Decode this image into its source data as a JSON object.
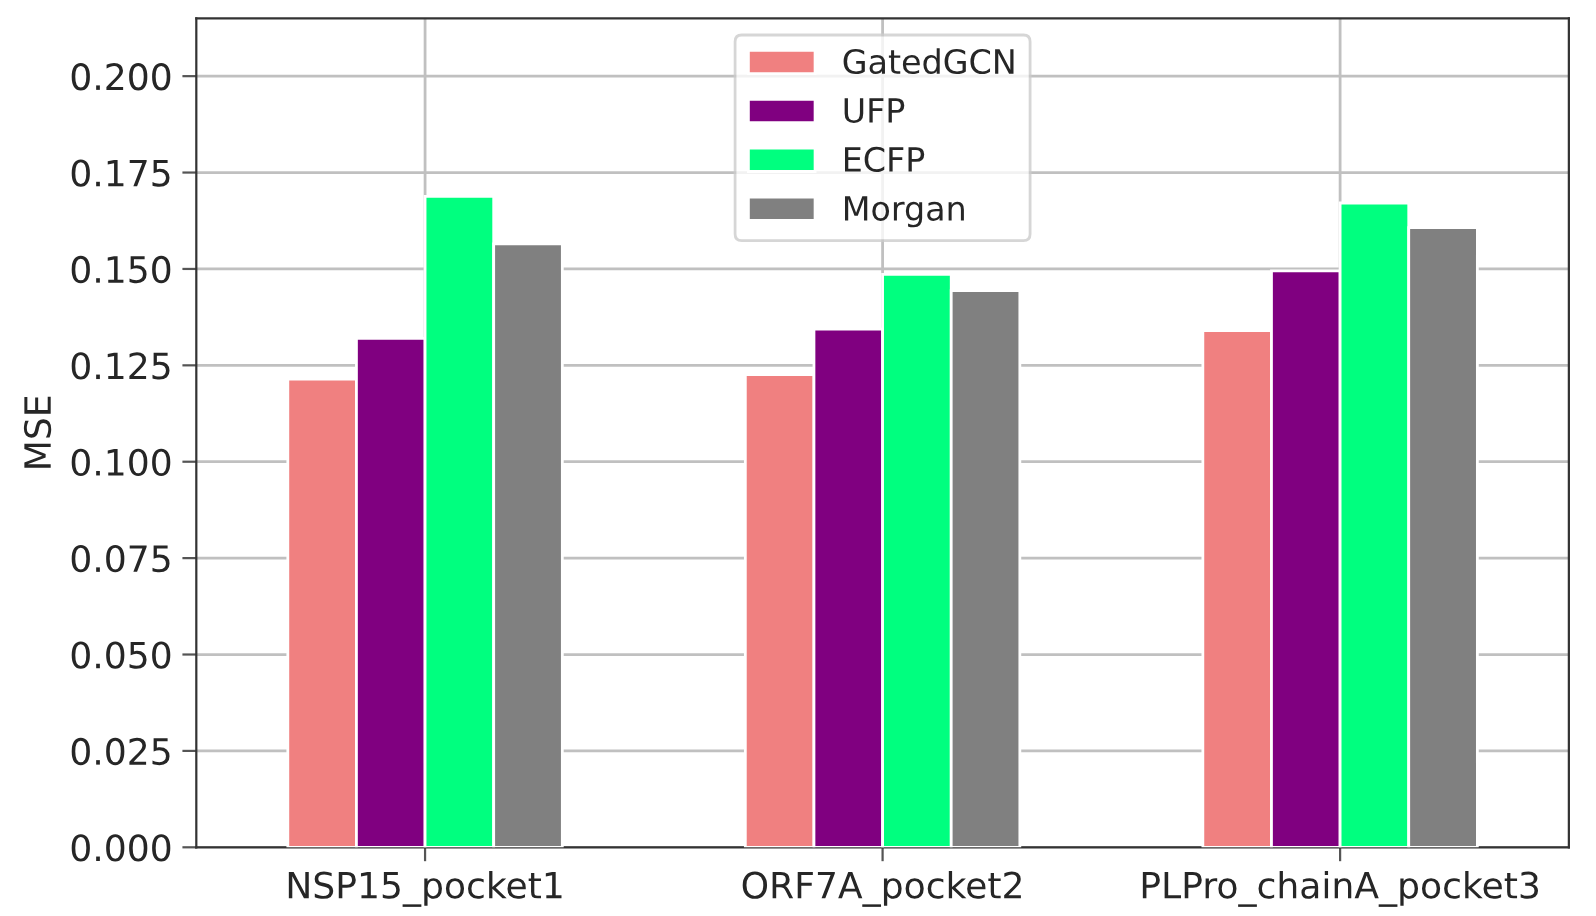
{
  "chart_data": {
    "type": "bar",
    "ylabel": "MSE",
    "categories": [
      "NSP15_pocket1",
      "ORF7A_pocket2",
      "PLPro_chainA_pocket3"
    ],
    "series": [
      {
        "name": "GatedGCN",
        "color": "#f08080",
        "values": [
          0.1214,
          0.1226,
          0.134
        ]
      },
      {
        "name": "UFP",
        "color": "#800080",
        "values": [
          0.132,
          0.1344,
          0.1495
        ]
      },
      {
        "name": "ECFP",
        "color": "#00ff7f",
        "values": [
          0.1688,
          0.1486,
          0.1671
        ]
      },
      {
        "name": "Morgan",
        "color": "#808080",
        "values": [
          0.1565,
          0.1444,
          0.1607
        ]
      }
    ],
    "ylim": [
      0,
      0.215
    ],
    "yticks": [
      {
        "value": 0,
        "label": "0.000"
      },
      {
        "value": 0.025,
        "label": "0.025"
      },
      {
        "value": 0.05,
        "label": "0.050"
      },
      {
        "value": 0.075,
        "label": "0.075"
      },
      {
        "value": 0.1,
        "label": "0.100"
      },
      {
        "value": 0.125,
        "label": "0.125"
      },
      {
        "value": 0.15,
        "label": "0.150"
      },
      {
        "value": 0.175,
        "label": "0.175"
      },
      {
        "value": 0.2,
        "label": "0.200"
      }
    ],
    "grid": true,
    "legend": "top"
  }
}
